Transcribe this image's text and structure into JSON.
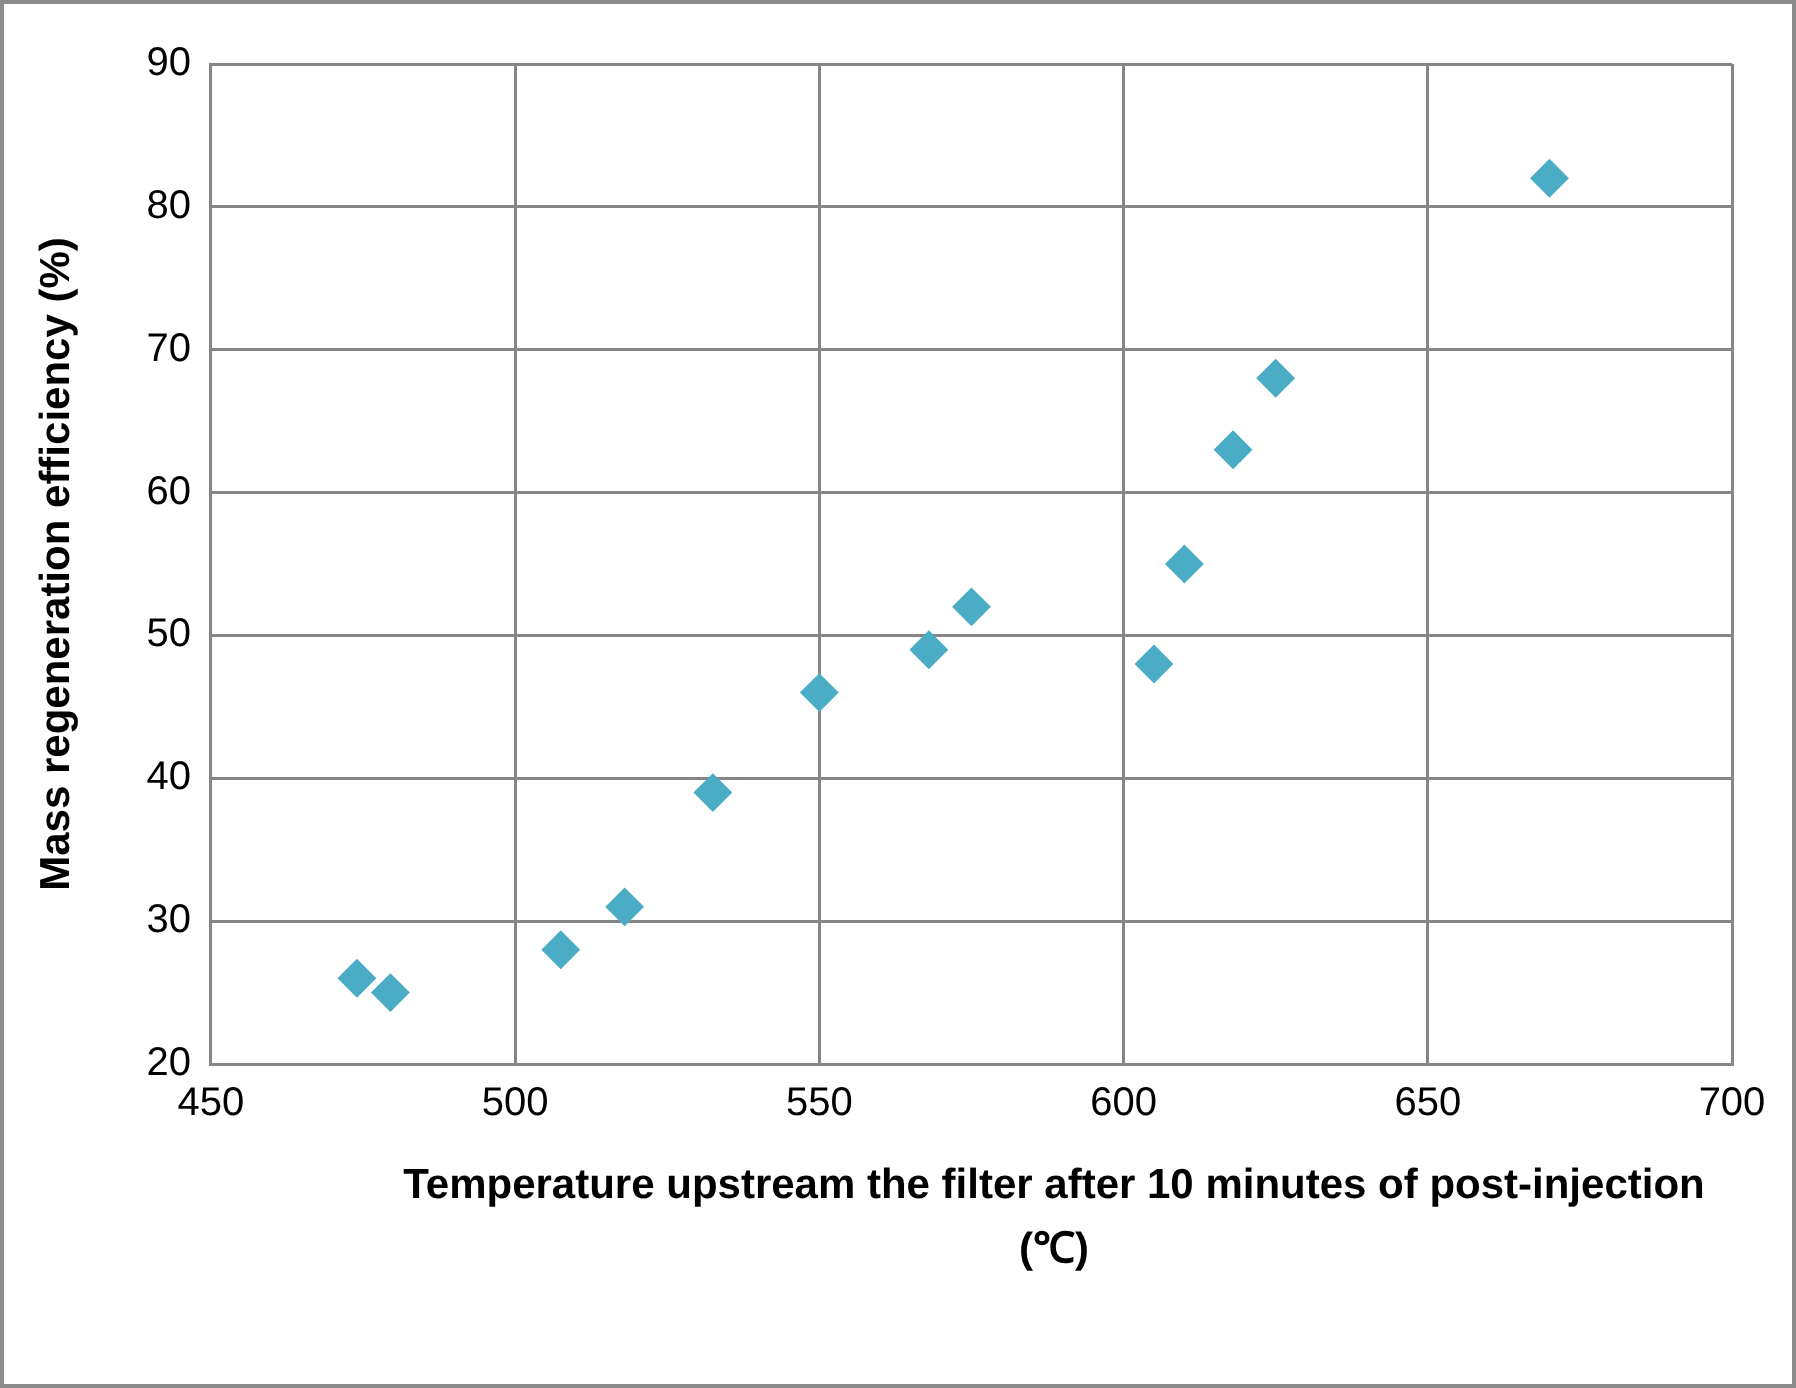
{
  "chart_data": {
    "type": "scatter",
    "xlabel": "Temperature upstream the filter after 10 minutes of post-injection (℃)",
    "ylabel": "Mass regeneration efficiency (%)",
    "x": [
      474,
      479.5,
      507.5,
      518,
      532.5,
      550,
      568,
      575,
      605,
      610,
      618,
      625,
      670
    ],
    "series": [
      {
        "color": "#4bacc6",
        "values": [
          26,
          25,
          28,
          31,
          39,
          46,
          49,
          52,
          48,
          55,
          63,
          68,
          82
        ]
      }
    ],
    "xlim": [
      450,
      700
    ],
    "xticks": [
      450,
      500,
      550,
      600,
      650,
      700
    ],
    "ylim": [
      20,
      90
    ],
    "yticks": [
      20,
      30,
      40,
      50,
      60,
      70,
      80,
      90
    ],
    "grid": true,
    "legend": false,
    "marker": "diamond"
  }
}
